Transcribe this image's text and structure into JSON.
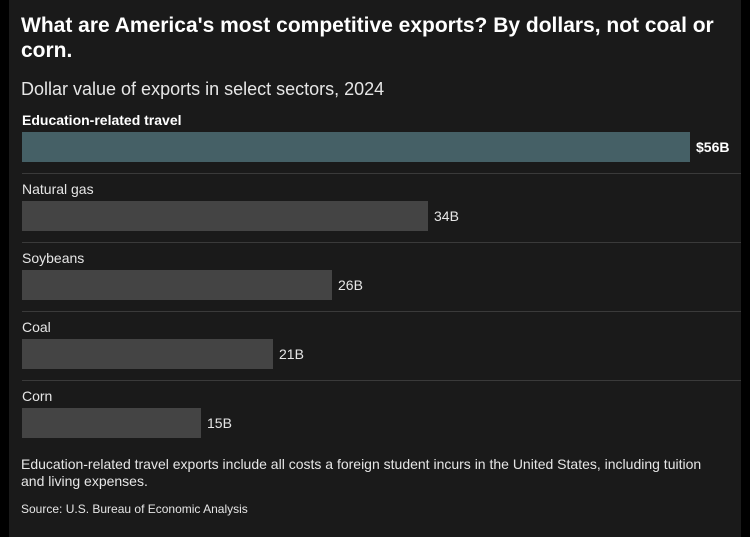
{
  "title": "What are America's most competitive exports? By dollars, not coal or corn.",
  "subtitle": "Dollar value of exports in select sectors, 2024",
  "note": "Education-related travel exports include all costs a foreign student incurs in the United States, including tuition and living expenses.",
  "source": "Source: U.S. Bureau of Economic Analysis",
  "colors": {
    "highlight": "#456066",
    "default": "#444444",
    "background": "#1a1a1a"
  },
  "chart_data": {
    "type": "bar",
    "orientation": "horizontal",
    "title": "What are America's most competitive exports? By dollars, not coal or corn.",
    "subtitle": "Dollar value of exports in select sectors, 2024",
    "categories": [
      "Education-related travel",
      "Natural gas",
      "Soybeans",
      "Coal",
      "Corn"
    ],
    "values": [
      56,
      34,
      26,
      21,
      15
    ],
    "value_labels": [
      "$56B",
      "34B",
      "26B",
      "21B",
      "15B"
    ],
    "highlighted": "Education-related travel",
    "xlim": [
      0,
      56
    ],
    "grid": false,
    "legend": "none"
  }
}
